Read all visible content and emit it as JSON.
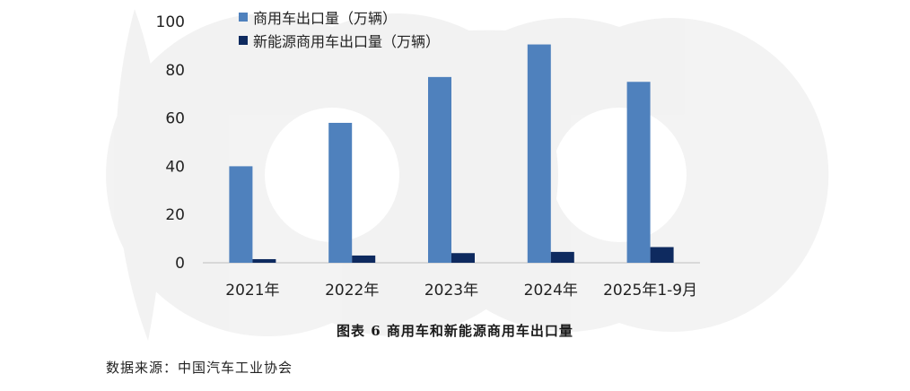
{
  "chart_data": {
    "type": "bar",
    "categories": [
      "2021年",
      "2022年",
      "2023年",
      "2024年",
      "2025年1-9月"
    ],
    "series": [
      {
        "name": "商用车出口量（万辆）",
        "values": [
          40,
          58,
          77,
          90.5,
          75
        ],
        "color": "#4f81bd"
      },
      {
        "name": "新能源商用车出口量（万辆）",
        "values": [
          1.5,
          3,
          4,
          4.5,
          6.5
        ],
        "color": "#0e2a5f"
      }
    ],
    "ylim": [
      0,
      100
    ],
    "yticks": [
      0,
      20,
      40,
      60,
      80,
      100
    ],
    "grid": false,
    "legend_position": "top-left",
    "title": "",
    "xlabel": "",
    "ylabel": ""
  },
  "caption": "图表 6  商用车和新能源商用车出口量",
  "source": "数据来源：中国汽车工业协会"
}
